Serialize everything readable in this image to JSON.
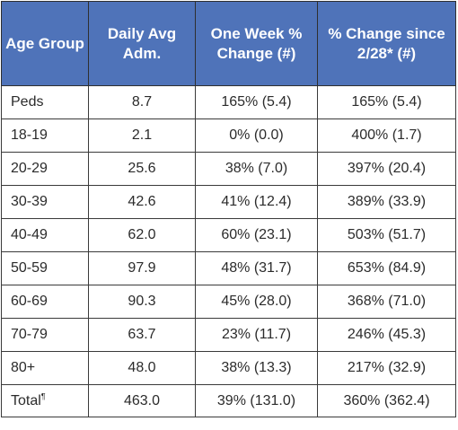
{
  "table": {
    "headers": [
      "Age Group",
      "Daily Avg Adm.",
      "One Week % Change (#)",
      "% Change since 2/28* (#)"
    ],
    "rows": [
      {
        "age": "Peds",
        "daily_avg": "8.7",
        "week_change": "165% (5.4)",
        "since_change": "165% (5.4)"
      },
      {
        "age": "18-19",
        "daily_avg": "2.1",
        "week_change": "0% (0.0)",
        "since_change": "400% (1.7)"
      },
      {
        "age": "20-29",
        "daily_avg": "25.6",
        "week_change": "38% (7.0)",
        "since_change": "397% (20.4)"
      },
      {
        "age": "30-39",
        "daily_avg": "42.6",
        "week_change": "41% (12.4)",
        "since_change": "389% (33.9)"
      },
      {
        "age": "40-49",
        "daily_avg": "62.0",
        "week_change": "60% (23.1)",
        "since_change": "503% (51.7)"
      },
      {
        "age": "50-59",
        "daily_avg": "97.9",
        "week_change": "48% (31.7)",
        "since_change": "653% (84.9)"
      },
      {
        "age": "60-69",
        "daily_avg": "90.3",
        "week_change": "45% (28.0)",
        "since_change": "368% (71.0)"
      },
      {
        "age": "70-79",
        "daily_avg": "63.7",
        "week_change": "23% (11.7)",
        "since_change": "246% (45.3)"
      },
      {
        "age": "80+",
        "daily_avg": "48.0",
        "week_change": "38% (13.3)",
        "since_change": "217% (32.9)"
      }
    ],
    "total": {
      "label": "Total",
      "footnote_mark": "¶",
      "daily_avg": "463.0",
      "week_change": "39% (131.0)",
      "since_change": "360% (362.4)"
    }
  },
  "colors": {
    "header_bg": "#4f73b9",
    "header_text": "#ffffff",
    "border": "#3a3a3a"
  }
}
